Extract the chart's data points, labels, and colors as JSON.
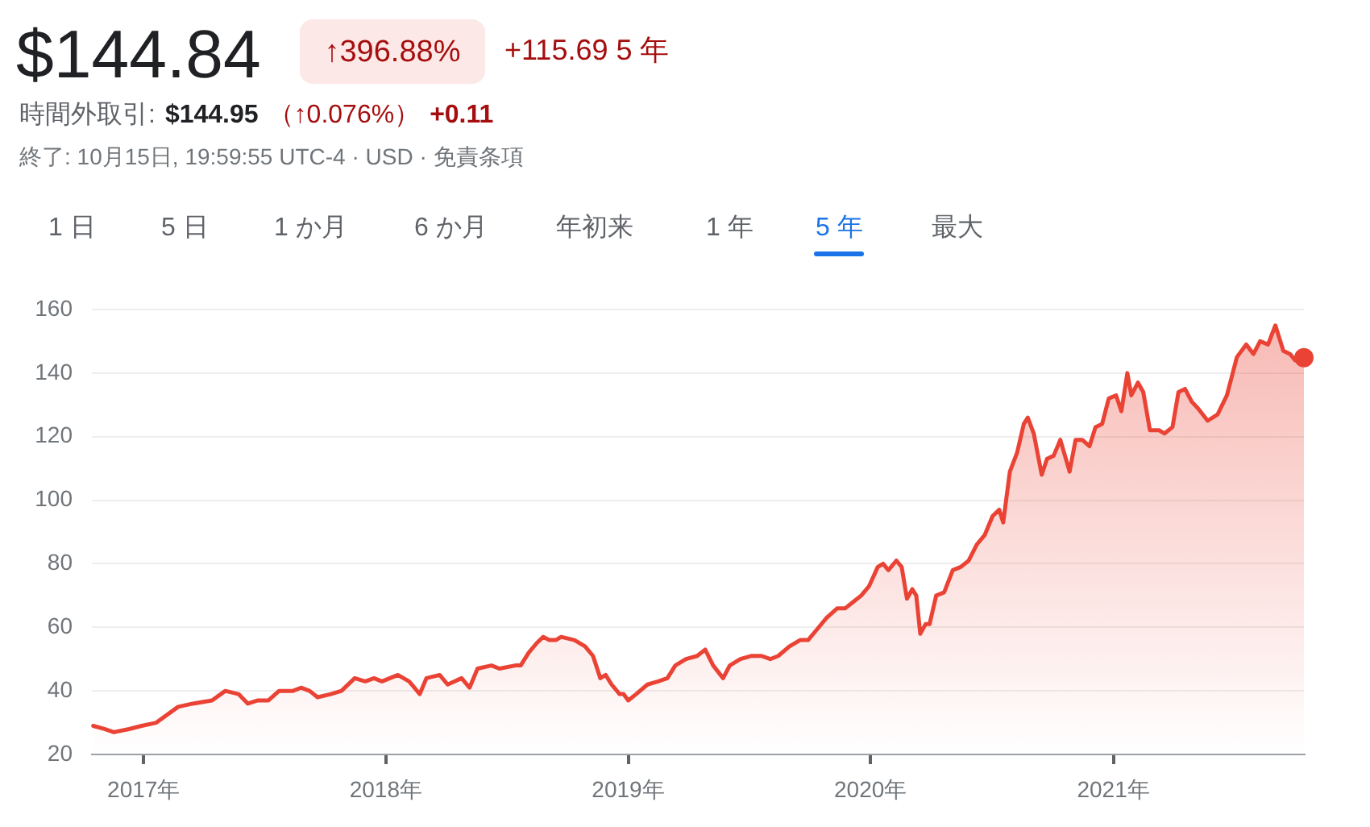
{
  "chart_data": {
    "type": "area",
    "title": "$144.84",
    "annotations": [
      "↑396.88%",
      "+115.69 5 年",
      "時間外取引:",
      "$144.95",
      "（↑0.076%）",
      "+0.11",
      "終了: 10月15日, 19:59:55 UTC-4 · USD · 免責条項",
      "1 日",
      "5 日",
      "1 か月",
      "6 か月",
      "年初来",
      "1 年",
      "5 年",
      "最大"
    ],
    "xlim": [
      "2016-10-15",
      "2021-10-15"
    ],
    "xticks": [
      {
        "value": "2017-01-01",
        "label": "2017年"
      },
      {
        "value": "2018-01-01",
        "label": "2018年"
      },
      {
        "value": "2019-01-01",
        "label": "2019年"
      },
      {
        "value": "2020-01-01",
        "label": "2020年"
      },
      {
        "value": "2021-01-01",
        "label": "2021年"
      }
    ],
    "ylim": [
      20,
      160
    ],
    "yticks": [
      20,
      40,
      60,
      80,
      100,
      120,
      140,
      160
    ],
    "grid": "y",
    "marker": "none",
    "series": [
      {
        "color": "#ea4335",
        "x": [
          "2016-10-17",
          "2016-11-03",
          "2016-11-17",
          "2016-12-10",
          "2016-12-29",
          "2017-01-20",
          "2017-02-22",
          "2017-03-16",
          "2017-04-14",
          "2017-05-04",
          "2017-05-24",
          "2017-06-07",
          "2017-06-22",
          "2017-07-08",
          "2017-07-24",
          "2017-08-14",
          "2017-08-26",
          "2017-09-08",
          "2017-09-20",
          "2017-10-10",
          "2017-10-26",
          "2017-11-15",
          "2017-12-01",
          "2017-12-14",
          "2017-12-26",
          "2018-01-19",
          "2018-02-05",
          "2018-02-21",
          "2018-03-03",
          "2018-03-23",
          "2018-04-04",
          "2018-04-25",
          "2018-05-07",
          "2018-05-19",
          "2018-06-09",
          "2018-06-21",
          "2018-07-15",
          "2018-07-23",
          "2018-08-04",
          "2018-08-16",
          "2018-08-26",
          "2018-09-04",
          "2018-09-14",
          "2018-09-22",
          "2018-10-12",
          "2018-10-28",
          "2018-11-09",
          "2018-11-20",
          "2018-11-28",
          "2018-12-07",
          "2018-12-19",
          "2018-12-25",
          "2019-01-01",
          "2019-01-13",
          "2019-01-30",
          "2019-02-15",
          "2019-03-01",
          "2019-03-13",
          "2019-03-29",
          "2019-04-15",
          "2019-04-27",
          "2019-05-09",
          "2019-05-24",
          "2019-06-03",
          "2019-06-19",
          "2019-07-05",
          "2019-07-21",
          "2019-08-03",
          "2019-08-15",
          "2019-09-01",
          "2019-09-17",
          "2019-09-29",
          "2019-10-11",
          "2019-10-27",
          "2019-11-12",
          "2019-11-24",
          "2019-12-06",
          "2019-12-18",
          "2019-12-30",
          "2020-01-12",
          "2020-01-20",
          "2020-01-28",
          "2020-02-09",
          "2020-02-17",
          "2020-02-25",
          "2020-03-04",
          "2020-03-10",
          "2020-03-16",
          "2020-03-24",
          "2020-03-30",
          "2020-04-09",
          "2020-04-21",
          "2020-05-04",
          "2020-05-16",
          "2020-05-28",
          "2020-06-09",
          "2020-06-21",
          "2020-07-03",
          "2020-07-13",
          "2020-07-19",
          "2020-07-29",
          "2020-08-09",
          "2020-08-19",
          "2020-08-25",
          "2020-09-03",
          "2020-09-15",
          "2020-09-23",
          "2020-10-03",
          "2020-10-13",
          "2020-10-27",
          "2020-11-05",
          "2020-11-15",
          "2020-11-26",
          "2020-12-05",
          "2020-12-15",
          "2020-12-25",
          "2021-01-05",
          "2021-01-13",
          "2021-01-22",
          "2021-01-28",
          "2021-02-07",
          "2021-02-15",
          "2021-02-25",
          "2021-03-11",
          "2021-03-19",
          "2021-03-31",
          "2021-04-09",
          "2021-04-19",
          "2021-04-29",
          "2021-05-08",
          "2021-05-23",
          "2021-06-07",
          "2021-06-21",
          "2021-07-06",
          "2021-07-20",
          "2021-07-31",
          "2021-08-10",
          "2021-08-22",
          "2021-09-02",
          "2021-09-14",
          "2021-09-24",
          "2021-10-02",
          "2021-10-15"
        ],
        "values": [
          29,
          28,
          27,
          28,
          29,
          30,
          35,
          36,
          37,
          40,
          39,
          36,
          37,
          37,
          40,
          40,
          41,
          40,
          38,
          39,
          40,
          44,
          43,
          44,
          43,
          45,
          43,
          39,
          44,
          45,
          42,
          44,
          41,
          47,
          48,
          47,
          48,
          48,
          52,
          55,
          57,
          56,
          56,
          57,
          56,
          54,
          51,
          44,
          45,
          42,
          39,
          39,
          37,
          39,
          42,
          43,
          44,
          48,
          50,
          51,
          53,
          48,
          44,
          48,
          50,
          51,
          51,
          50,
          51,
          54,
          56,
          56,
          59,
          63,
          66,
          66,
          68,
          70,
          73,
          79,
          80,
          78,
          81,
          79,
          69,
          72,
          70,
          58,
          61,
          61,
          70,
          71,
          78,
          79,
          81,
          86,
          89,
          95,
          97,
          93,
          109,
          115,
          124,
          126,
          121,
          108,
          113,
          114,
          119,
          109,
          119,
          119,
          117,
          123,
          124,
          132,
          133,
          128,
          140,
          133,
          137,
          134,
          122,
          122,
          121,
          123,
          134,
          135,
          131,
          129,
          125,
          127,
          133,
          145,
          149,
          146,
          150,
          149,
          155,
          147,
          146,
          144,
          144.84
        ]
      },
      {
        "type": "scatter",
        "marker": "circle",
        "color": "#ea4335",
        "x": [
          "2021-10-15"
        ],
        "values": [
          144.84
        ]
      }
    ]
  }
}
